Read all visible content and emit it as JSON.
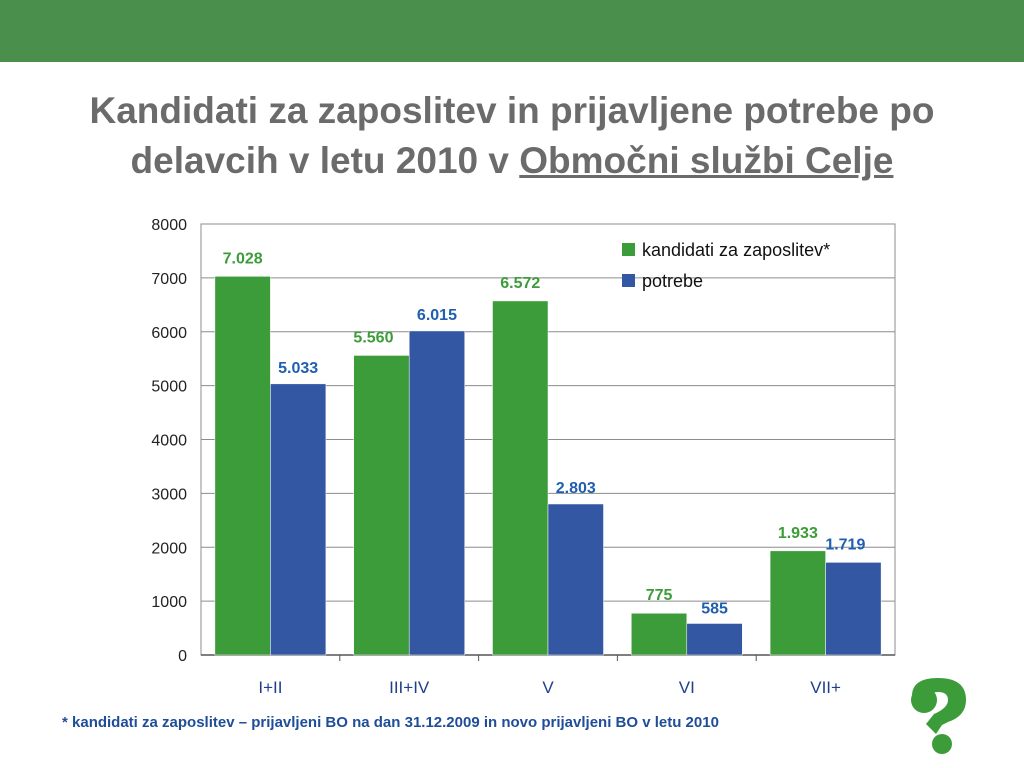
{
  "title": {
    "line1": "Kandidati za zaposlitev in prijavljene potrebe po",
    "line2_prefix": "delavcih v letu 2010 v ",
    "line2_underlined": "Območni službi Celje"
  },
  "footnote": "* kandidati za zaposlitev – prijavljeni BO na dan 31.12.2009 in novo prijavljeni BO v letu 2010",
  "colors": {
    "header": "#4a8f4c",
    "green": "#3d9c3a",
    "blue": "#3457a3",
    "green_label": "#3d9c3a",
    "blue_label": "#1f5fb0",
    "title": "#6b6b6b",
    "footnote": "#1f4d9a"
  },
  "chart_data": {
    "type": "bar",
    "categories": [
      "I+II",
      "III+IV",
      "V",
      "VI",
      "VII+"
    ],
    "series": [
      {
        "name": "kandidati za zaposlitev*",
        "values": [
          7028,
          5560,
          6572,
          775,
          1933
        ],
        "labels": [
          "7.028",
          "5.560",
          "6.572",
          "775",
          "1.933"
        ]
      },
      {
        "name": "potrebe",
        "values": [
          5033,
          6015,
          2803,
          585,
          1719
        ],
        "labels": [
          "5.033",
          "6.015",
          "2.803",
          "585",
          "1.719"
        ]
      }
    ],
    "yticks": [
      "0",
      "1000",
      "2000",
      "3000",
      "4000",
      "5000",
      "6000",
      "7000",
      "8000"
    ],
    "ylim": [
      0,
      8000
    ],
    "grid": true,
    "legend_position": "top-right",
    "xlabel": "",
    "ylabel": ""
  },
  "logo": {
    "icon": "question-mark-logo-icon"
  }
}
